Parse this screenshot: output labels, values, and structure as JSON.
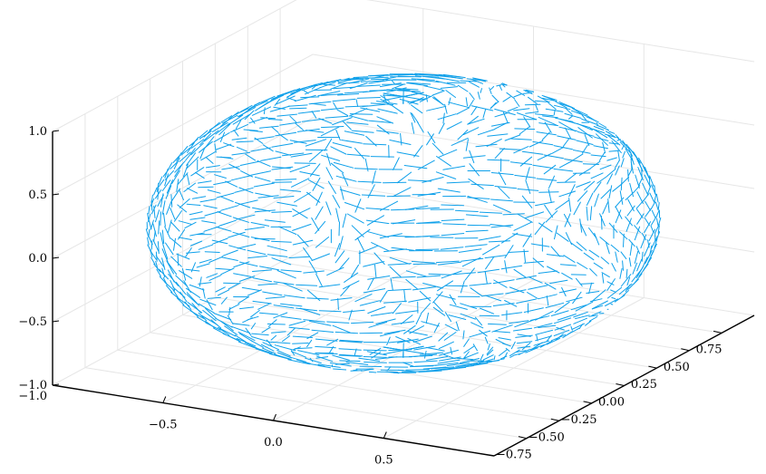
{
  "chart_data": {
    "type": "quiver3d",
    "title": "",
    "xlabel": "",
    "ylabel": "",
    "zlabel": "",
    "grid": true,
    "legend": "none",
    "colors": {
      "arrows": "#0ea0ea",
      "grid": "#e6e6e6",
      "axis": "#000000"
    },
    "axes": {
      "x": {
        "ticks": [
          -0.5,
          0.0,
          0.5
        ],
        "tick_labels": [
          "−0.5",
          "0.0",
          "0.5"
        ],
        "lim": [
          -1.0,
          1.0
        ]
      },
      "y": {
        "ticks": [
          -0.75,
          -0.5,
          -0.25,
          0.0,
          0.25,
          0.5,
          0.75
        ],
        "tick_labels": [
          "−0.75",
          "−0.50",
          "−0.25",
          "0.00",
          "0.25",
          "0.50",
          "0.75"
        ],
        "lim": [
          -1.0,
          1.0
        ]
      },
      "z": {
        "ticks": [
          -1.0,
          -0.5,
          0.0,
          0.5,
          1.0
        ],
        "tick_labels": [
          "−1.0",
          "−0.5",
          "0.0",
          "0.5",
          "1.0"
        ],
        "lim": [
          -1.0,
          1.0
        ]
      },
      "corner_label": "−1.0"
    },
    "series": [
      {
        "shape": "sphere",
        "radius": 1.0,
        "vector_field": "tangential",
        "color": "#0ea0ea"
      }
    ]
  }
}
